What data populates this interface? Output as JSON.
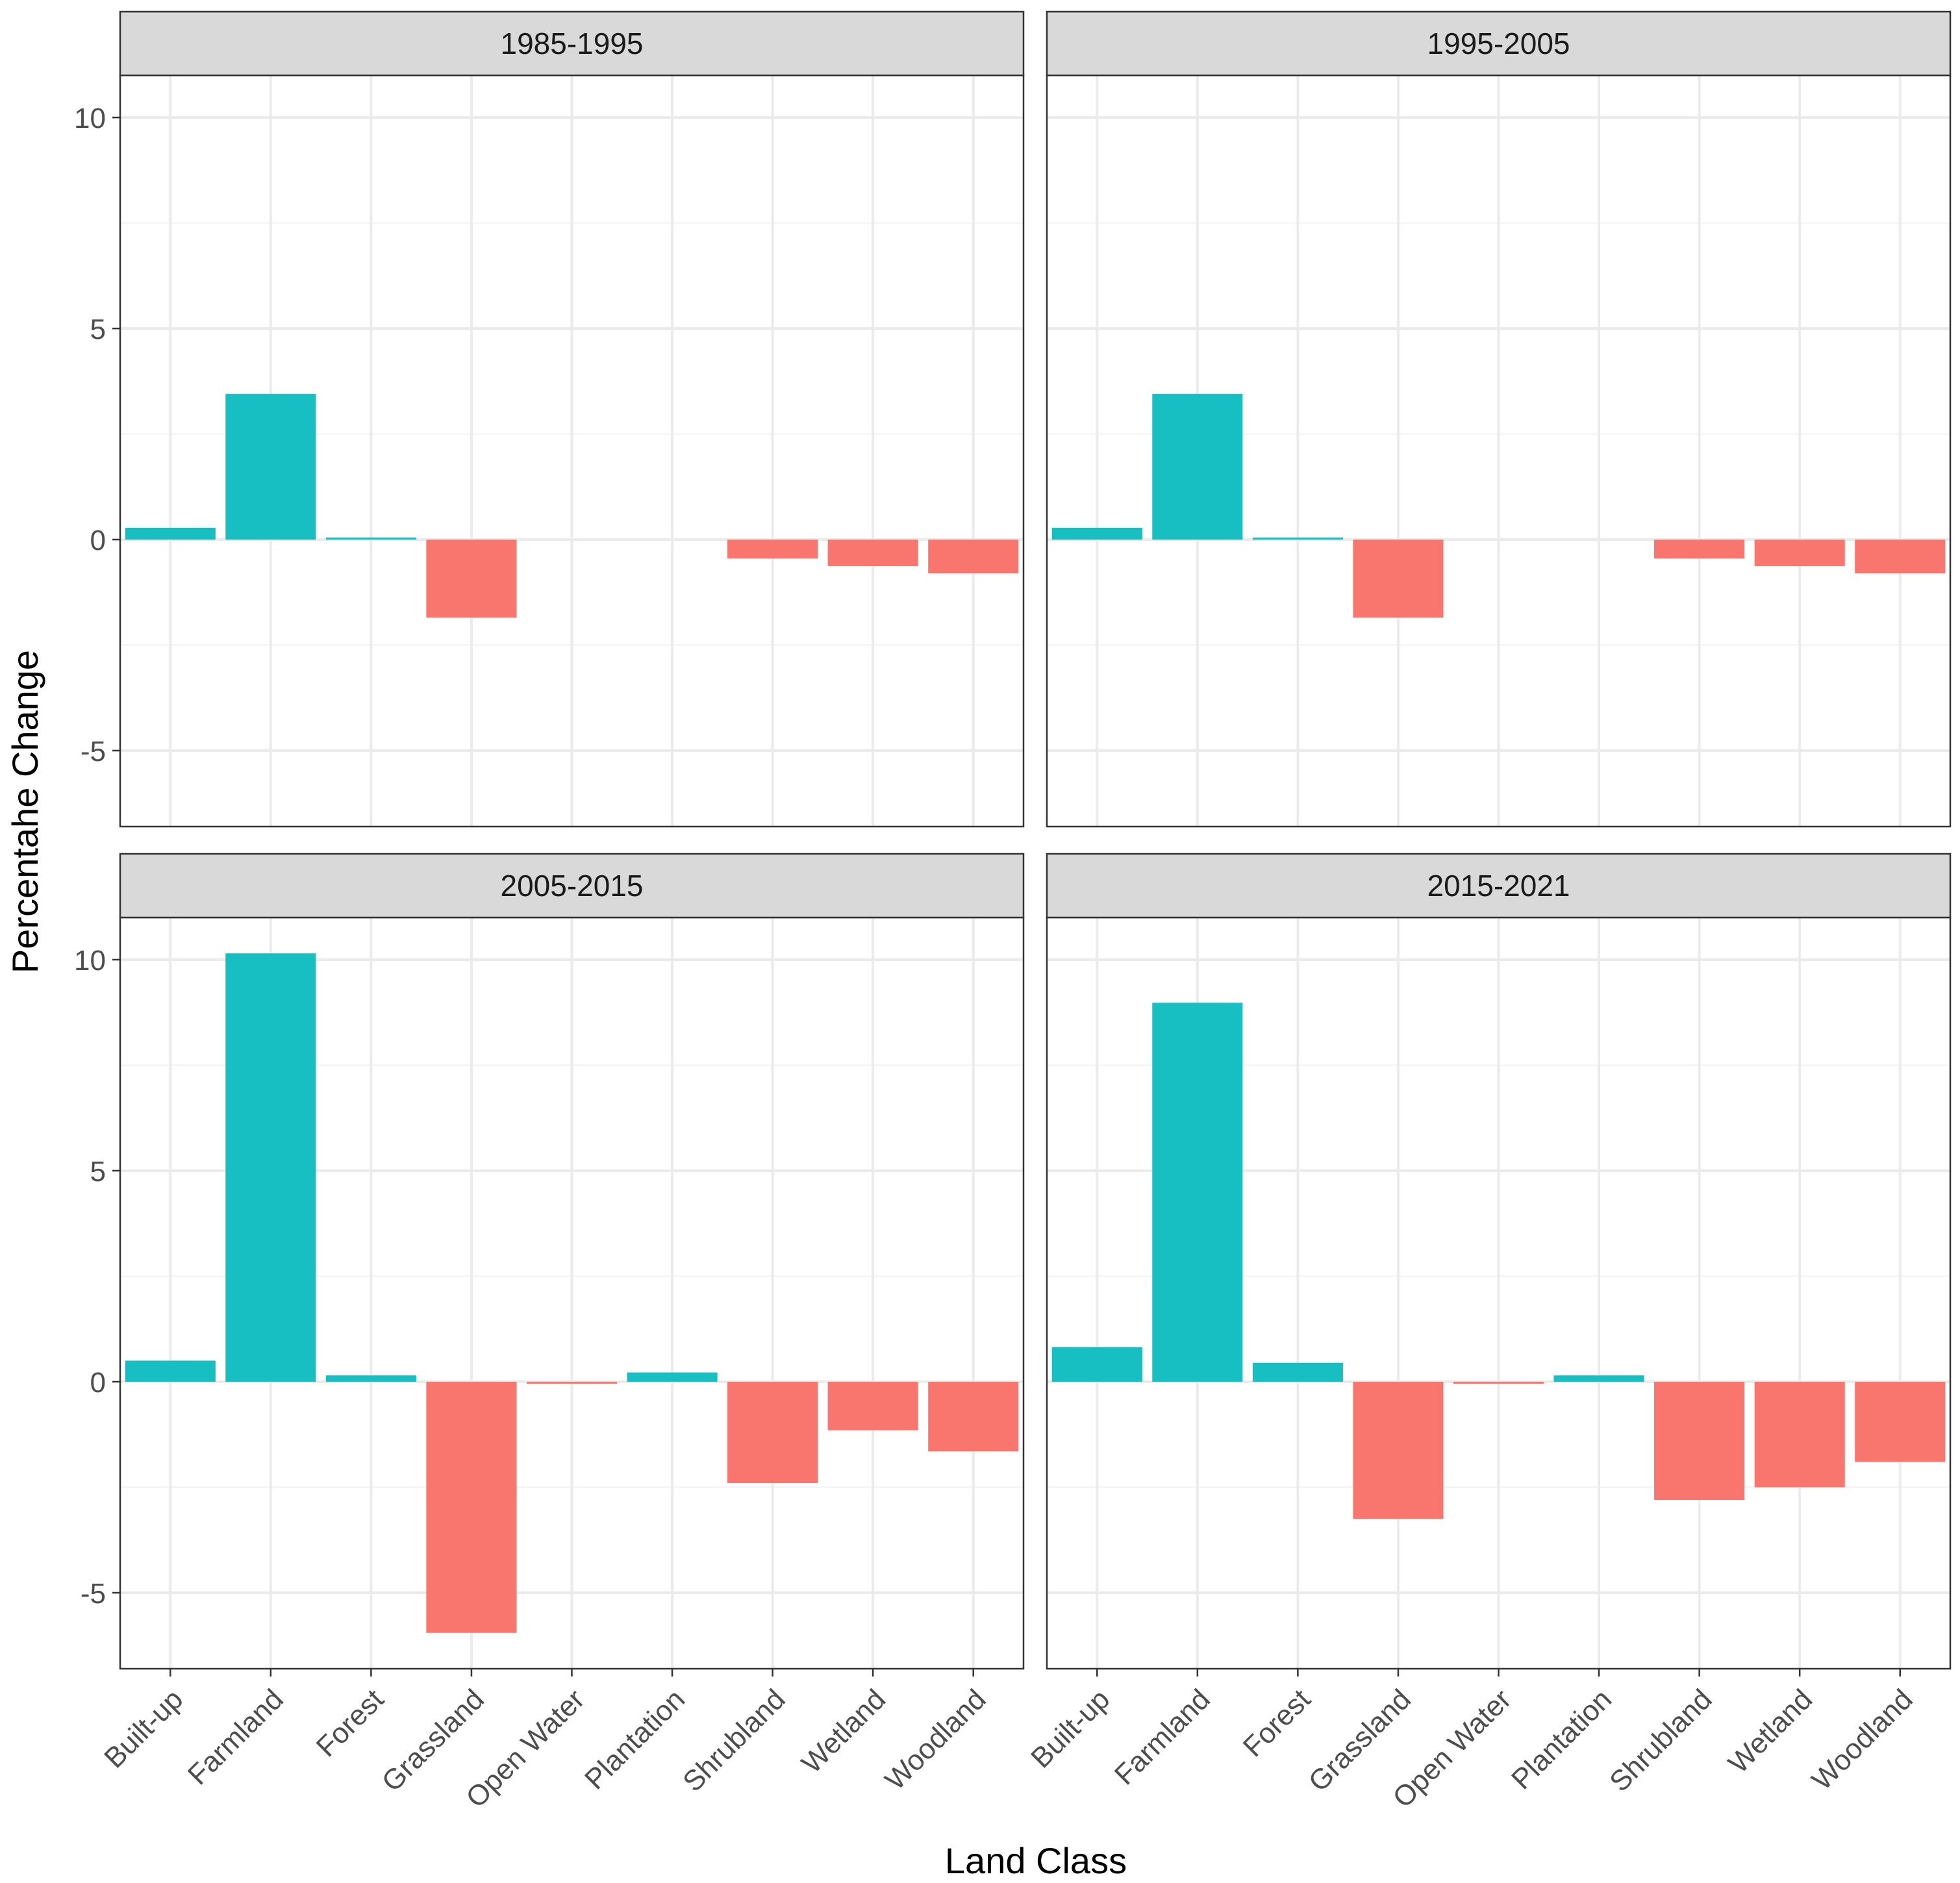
{
  "chart_data": {
    "type": "bar",
    "layout": "facet-grid-2x2",
    "xlabel": "Land Class",
    "ylabel": "Percentahe Change",
    "ylim": [
      -6.8,
      11
    ],
    "yticks": [
      -5,
      0,
      5,
      10
    ],
    "ytick_labels": [
      "-5",
      "0",
      "5",
      "10"
    ],
    "categories": [
      "Built-up",
      "Farmland",
      "Forest",
      "Grassland",
      "Open Water",
      "Plantation",
      "Shrubland",
      "Wetland",
      "Woodland"
    ],
    "colors": {
      "positive": "#17bec2",
      "negative": "#f8766d"
    },
    "grid": true,
    "panels": [
      {
        "title": "1985-1995",
        "values": [
          0.28,
          3.45,
          0.05,
          -1.85,
          0.0,
          0.0,
          -0.45,
          -0.63,
          -0.8
        ]
      },
      {
        "title": "1995-2005",
        "values": [
          0.28,
          3.45,
          0.05,
          -1.85,
          0.0,
          0.0,
          -0.45,
          -0.63,
          -0.8
        ]
      },
      {
        "title": "2005-2015",
        "values": [
          0.5,
          10.15,
          0.15,
          -5.95,
          -0.03,
          0.22,
          -2.4,
          -1.15,
          -1.65
        ]
      },
      {
        "title": "2015-2021",
        "values": [
          0.82,
          8.98,
          0.45,
          -3.25,
          -0.03,
          0.15,
          -2.8,
          -2.5,
          -1.9
        ]
      }
    ]
  }
}
